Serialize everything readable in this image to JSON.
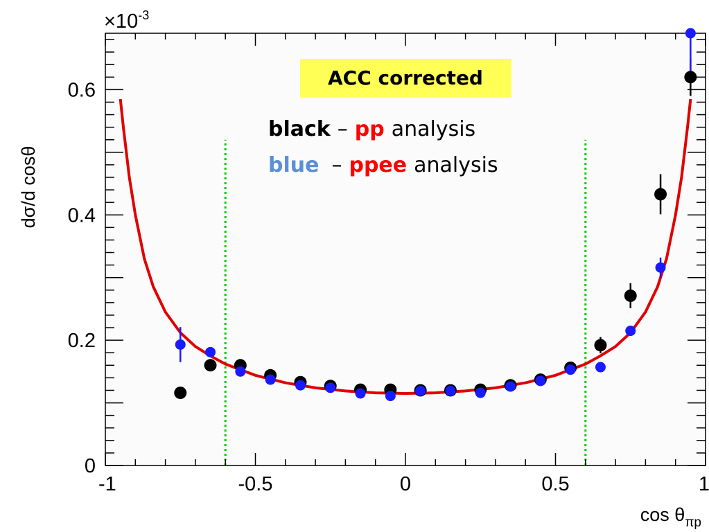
{
  "chart_data": {
    "type": "scatter",
    "title": "",
    "xlabel": "cos θπp",
    "ylabel": "dσ/d cosθ",
    "y_exponent": "×10-3",
    "xlim": [
      -1,
      1
    ],
    "ylim": [
      0,
      0.69
    ],
    "x_ticks": [
      "-1",
      "-0.5",
      "0",
      "0.5",
      "1"
    ],
    "y_ticks": [
      "0",
      "0.2",
      "0.4",
      "0.6"
    ],
    "grid": false,
    "series": [
      {
        "name": "pp analysis",
        "color": "#000000",
        "points": [
          {
            "x": -0.75,
            "y": 0.116,
            "err": 0.006
          },
          {
            "x": -0.65,
            "y": 0.16,
            "err": 0.007
          },
          {
            "x": -0.55,
            "y": 0.16,
            "err": 0.006
          },
          {
            "x": -0.45,
            "y": 0.144,
            "err": 0.005
          },
          {
            "x": -0.35,
            "y": 0.133,
            "err": 0.005
          },
          {
            "x": -0.25,
            "y": 0.127,
            "err": 0.005
          },
          {
            "x": -0.15,
            "y": 0.121,
            "err": 0.005
          },
          {
            "x": -0.05,
            "y": 0.121,
            "err": 0.005
          },
          {
            "x": 0.05,
            "y": 0.12,
            "err": 0.005
          },
          {
            "x": 0.15,
            "y": 0.12,
            "err": 0.005
          },
          {
            "x": 0.25,
            "y": 0.121,
            "err": 0.005
          },
          {
            "x": 0.35,
            "y": 0.128,
            "err": 0.005
          },
          {
            "x": 0.45,
            "y": 0.137,
            "err": 0.005
          },
          {
            "x": 0.55,
            "y": 0.156,
            "err": 0.007
          },
          {
            "x": 0.65,
            "y": 0.192,
            "err": 0.013
          },
          {
            "x": 0.75,
            "y": 0.271,
            "err": 0.02
          },
          {
            "x": 0.85,
            "y": 0.433,
            "err": 0.032
          },
          {
            "x": 0.95,
            "y": 0.62,
            "err": 0.03
          }
        ]
      },
      {
        "name": "ppee analysis",
        "color": "#1a1aff",
        "points": [
          {
            "x": -0.75,
            "y": 0.193,
            "err": 0.028
          },
          {
            "x": -0.65,
            "y": 0.181,
            "err": 0.008
          },
          {
            "x": -0.55,
            "y": 0.15,
            "err": 0.006
          },
          {
            "x": -0.45,
            "y": 0.137,
            "err": 0.005
          },
          {
            "x": -0.35,
            "y": 0.128,
            "err": 0.005
          },
          {
            "x": -0.25,
            "y": 0.124,
            "err": 0.005
          },
          {
            "x": -0.15,
            "y": 0.115,
            "err": 0.005
          },
          {
            "x": -0.05,
            "y": 0.111,
            "err": 0.005
          },
          {
            "x": 0.05,
            "y": 0.119,
            "err": 0.005
          },
          {
            "x": 0.15,
            "y": 0.119,
            "err": 0.005
          },
          {
            "x": 0.25,
            "y": 0.116,
            "err": 0.005
          },
          {
            "x": 0.35,
            "y": 0.126,
            "err": 0.005
          },
          {
            "x": 0.45,
            "y": 0.135,
            "err": 0.005
          },
          {
            "x": 0.55,
            "y": 0.153,
            "err": 0.007
          },
          {
            "x": 0.65,
            "y": 0.157,
            "err": 0.006
          },
          {
            "x": 0.75,
            "y": 0.215,
            "err": 0.008
          },
          {
            "x": 0.85,
            "y": 0.316,
            "err": 0.016
          },
          {
            "x": 0.95,
            "y": 0.69,
            "err": 0.06
          }
        ]
      }
    ],
    "curve": {
      "color": "#e00000",
      "points": [
        {
          "x": -0.95,
          "y": 0.585
        },
        {
          "x": -0.94,
          "y": 0.54
        },
        {
          "x": -0.92,
          "y": 0.46
        },
        {
          "x": -0.9,
          "y": 0.4
        },
        {
          "x": -0.87,
          "y": 0.33
        },
        {
          "x": -0.84,
          "y": 0.285
        },
        {
          "x": -0.8,
          "y": 0.245
        },
        {
          "x": -0.75,
          "y": 0.212
        },
        {
          "x": -0.7,
          "y": 0.19
        },
        {
          "x": -0.65,
          "y": 0.175
        },
        {
          "x": -0.6,
          "y": 0.162
        },
        {
          "x": -0.5,
          "y": 0.144
        },
        {
          "x": -0.4,
          "y": 0.132
        },
        {
          "x": -0.3,
          "y": 0.124
        },
        {
          "x": -0.2,
          "y": 0.119
        },
        {
          "x": -0.1,
          "y": 0.116
        },
        {
          "x": 0.0,
          "y": 0.115
        },
        {
          "x": 0.1,
          "y": 0.116
        },
        {
          "x": 0.2,
          "y": 0.119
        },
        {
          "x": 0.3,
          "y": 0.124
        },
        {
          "x": 0.4,
          "y": 0.132
        },
        {
          "x": 0.5,
          "y": 0.144
        },
        {
          "x": 0.6,
          "y": 0.162
        },
        {
          "x": 0.65,
          "y": 0.175
        },
        {
          "x": 0.7,
          "y": 0.19
        },
        {
          "x": 0.75,
          "y": 0.212
        },
        {
          "x": 0.8,
          "y": 0.245
        },
        {
          "x": 0.84,
          "y": 0.285
        },
        {
          "x": 0.87,
          "y": 0.33
        },
        {
          "x": 0.9,
          "y": 0.4
        },
        {
          "x": 0.92,
          "y": 0.46
        },
        {
          "x": 0.94,
          "y": 0.54
        },
        {
          "x": 0.95,
          "y": 0.585
        }
      ]
    },
    "vertical_lines": [
      {
        "x": -0.6,
        "y_range": [
          0,
          0.52
        ],
        "color": "#00cc00",
        "style": "dotted"
      },
      {
        "x": 0.6,
        "y_range": [
          0,
          0.52
        ],
        "color": "#00cc00",
        "style": "dotted"
      }
    ]
  },
  "annotations": {
    "box_label": "ACC corrected",
    "box_color": "#ffff55",
    "line1": {
      "word": "black",
      "dash": "–",
      "key": "pp",
      "rest": "analysis"
    },
    "line2": {
      "word": "blue",
      "dash": "–",
      "key": "ppee",
      "rest": "analysis"
    },
    "black_color": "#000000",
    "blue_color": "#5b8fd6",
    "key_color": "#ff0000"
  }
}
